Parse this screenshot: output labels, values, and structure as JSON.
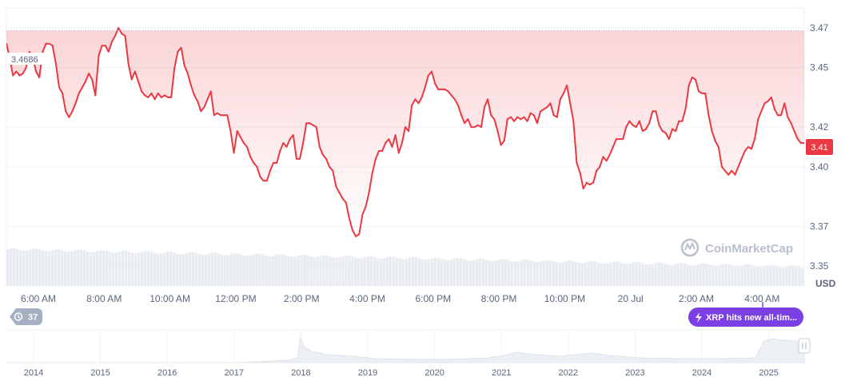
{
  "colors": {
    "line": "#ea3943",
    "line_up": "#16c784",
    "fill_top": "#ea3943",
    "grid": "#eff2f5",
    "reference": "#a6b0c3",
    "volume": "#e8ebf0",
    "price_badge": "#ea3943",
    "event": "#7b3fe4",
    "overview_fill": "#eceff3",
    "pill_bg": "#a6b0c3"
  },
  "chart_data": {
    "type": "line",
    "unit": "USD",
    "ylim": [
      3.34,
      3.48
    ],
    "yticks": [
      "3.35",
      "3.37",
      "3.40",
      "3.42",
      "3.45",
      "3.47"
    ],
    "xticks": [
      "6:00 AM",
      "8:00 AM",
      "10:00 AM",
      "12:00 PM",
      "2:00 PM",
      "4:00 PM",
      "6:00 PM",
      "8:00 PM",
      "10:00 PM",
      "20 Jul",
      "2:00 AM",
      "4:00 AM"
    ],
    "reference_value": "3.4686",
    "current_value": "3.41",
    "series": [
      {
        "values": [
          3.462,
          3.455,
          3.446,
          3.448,
          3.446,
          3.447,
          3.45,
          3.458,
          3.455,
          3.448,
          3.445,
          3.458,
          3.462,
          3.462,
          3.461,
          3.452,
          3.44,
          3.437,
          3.428,
          3.425,
          3.428,
          3.432,
          3.437,
          3.44,
          3.443,
          3.447,
          3.444,
          3.436,
          3.456,
          3.461,
          3.461,
          3.458,
          3.463,
          3.466,
          3.47,
          3.467,
          3.466,
          3.452,
          3.444,
          3.448,
          3.443,
          3.438,
          3.436,
          3.435,
          3.437,
          3.434,
          3.437,
          3.435,
          3.436,
          3.435,
          3.435,
          3.45,
          3.458,
          3.46,
          3.451,
          3.447,
          3.441,
          3.436,
          3.433,
          3.428,
          3.43,
          3.434,
          3.438,
          3.426,
          3.427,
          3.426,
          3.426,
          3.426,
          3.418,
          3.407,
          3.418,
          3.415,
          3.412,
          3.41,
          3.405,
          3.402,
          3.4,
          3.395,
          3.393,
          3.393,
          3.398,
          3.402,
          3.402,
          3.408,
          3.412,
          3.41,
          3.414,
          3.416,
          3.404,
          3.404,
          3.412,
          3.422,
          3.422,
          3.421,
          3.42,
          3.41,
          3.406,
          3.404,
          3.4,
          3.398,
          3.39,
          3.387,
          3.384,
          3.382,
          3.374,
          3.368,
          3.365,
          3.366,
          3.376,
          3.38,
          3.387,
          3.397,
          3.404,
          3.408,
          3.408,
          3.412,
          3.414,
          3.41,
          3.416,
          3.407,
          3.412,
          3.42,
          3.418,
          3.431,
          3.434,
          3.432,
          3.435,
          3.44,
          3.446,
          3.448,
          3.442,
          3.439,
          3.439,
          3.439,
          3.438,
          3.436,
          3.434,
          3.431,
          3.426,
          3.422,
          3.424,
          3.42,
          3.42,
          3.421,
          3.42,
          3.43,
          3.434,
          3.426,
          3.424,
          3.418,
          3.411,
          3.413,
          3.424,
          3.425,
          3.423,
          3.425,
          3.424,
          3.425,
          3.423,
          3.427,
          3.426,
          3.422,
          3.428,
          3.429,
          3.43,
          3.432,
          3.426,
          3.425,
          3.434,
          3.437,
          3.441,
          3.432,
          3.423,
          3.402,
          3.397,
          3.389,
          3.392,
          3.391,
          3.392,
          3.398,
          3.4,
          3.405,
          3.403,
          3.406,
          3.41,
          3.414,
          3.414,
          3.414,
          3.42,
          3.423,
          3.421,
          3.42,
          3.423,
          3.418,
          3.419,
          3.422,
          3.428,
          3.428,
          3.421,
          3.418,
          3.417,
          3.414,
          3.419,
          3.418,
          3.423,
          3.423,
          3.429,
          3.441,
          3.445,
          3.444,
          3.438,
          3.437,
          3.437,
          3.426,
          3.418,
          3.413,
          3.41,
          3.4,
          3.398,
          3.396,
          3.398,
          3.396,
          3.4,
          3.404,
          3.408,
          3.41,
          3.409,
          3.414,
          3.424,
          3.428,
          3.432,
          3.433,
          3.435,
          3.429,
          3.426,
          3.426,
          3.432,
          3.425,
          3.422,
          3.418,
          3.414,
          3.412,
          3.412
        ]
      }
    ],
    "overview": {
      "years": [
        "2014",
        "2015",
        "2016",
        "2017",
        "2018",
        "2019",
        "2020",
        "2021",
        "2022",
        "2023",
        "2024",
        "2025"
      ]
    }
  },
  "pill": {
    "icon": "history-icon",
    "count": "37"
  },
  "event": {
    "icon": "lightning-icon",
    "text": "XRP hits new all-tim..."
  },
  "watermark": {
    "icon": "coinmarketcap-logo-icon",
    "text": "CoinMarketCap"
  }
}
